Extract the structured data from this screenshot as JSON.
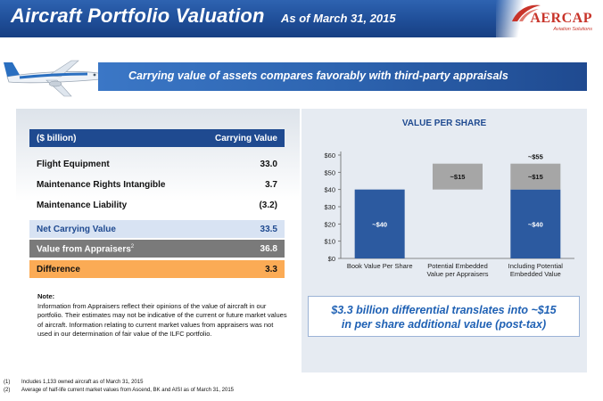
{
  "header": {
    "title": "Aircraft Portfolio Valuation",
    "subtitle": "As of March 31, 2015"
  },
  "logo": {
    "name": "AERCAP",
    "tagline": "Aviation Solutions"
  },
  "banner": {
    "text": "Carrying value of assets compares favorably with third-party appraisals"
  },
  "table": {
    "header_left": "($ billion)",
    "header_right": "Carrying Value",
    "rows": [
      {
        "label": "Flight Equipment",
        "value": "33.0"
      },
      {
        "label": "Maintenance Rights Intangible",
        "value": "3.7"
      },
      {
        "label": "Maintenance Liability",
        "value": "(3.2)"
      }
    ],
    "net": {
      "label": "Net Carrying Value",
      "value": "33.5"
    },
    "appraisers": {
      "label": "Value from Appraisers",
      "sup": "2",
      "value": "36.8"
    },
    "difference": {
      "label": "Difference",
      "value": "3.3"
    }
  },
  "note": {
    "title": "Note:",
    "body": "Information from Appraisers reflect their opinions of the value of aircraft in our portfolio. Their estimates may not be indicative of the current or future market values of aircraft. Information relating to current market values from appraisers was not used in our determination of fair value of the ILFC portfolio."
  },
  "chart_data": {
    "type": "bar",
    "title": "VALUE PER SHARE",
    "categories": [
      "Book Value Per Share",
      "Potential Embedded Value per Appraisers",
      "Including Potential Embedded Value"
    ],
    "category_lines": [
      [
        "Book Value Per Share"
      ],
      [
        "Potential Embedded",
        "Value per Appraisers"
      ],
      [
        "Including Potential",
        "Embedded Value"
      ]
    ],
    "series": [
      {
        "name": "",
        "values": [
          40,
          0,
          40
        ],
        "labels": [
          "~$40",
          "",
          "~$40"
        ],
        "color": "#2c5aa0"
      },
      {
        "name": "",
        "values": [
          0,
          15,
          15
        ],
        "base": [
          0,
          40,
          40
        ],
        "labels": [
          "",
          "~$15",
          "~$15"
        ],
        "color": "#a6a6a6"
      }
    ],
    "total_labels": [
      "",
      "",
      "~$55"
    ],
    "ylim": [
      0,
      60
    ],
    "yticks": [
      "$0",
      "$10",
      "$20",
      "$30",
      "$40",
      "$50",
      "$60"
    ],
    "grid": false
  },
  "takeaway": {
    "line1": "$3.3 billion differential translates into ~$15",
    "line2": "in per share additional value (post-tax)"
  },
  "footnotes": [
    {
      "num": "(1)",
      "text": "Includes 1,133 owned aircraft as of March 31, 2015"
    },
    {
      "num": "(2)",
      "text": "Average of half-life current market values from Ascend, BK and AISI as of March 31, 2015"
    }
  ],
  "colors": {
    "brand_blue": "#1f4a90",
    "accent_orange": "#fbab55",
    "logo_red": "#c8342a",
    "bar_blue": "#2c5aa0",
    "bar_gray": "#a6a6a6"
  }
}
